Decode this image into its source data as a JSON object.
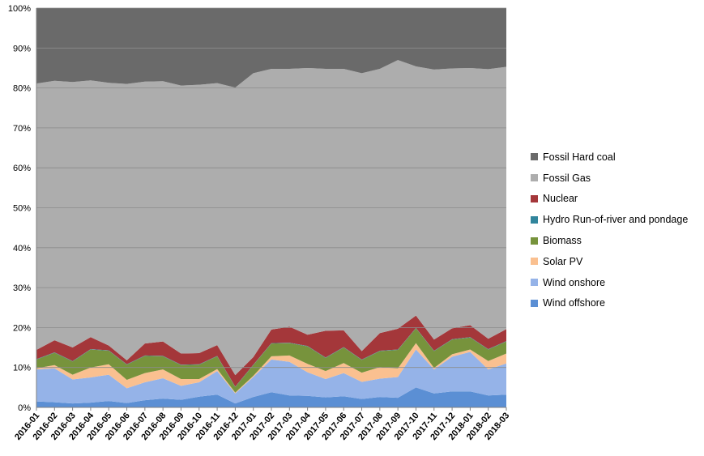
{
  "chart_data": {
    "type": "area",
    "stacked": true,
    "normalized": true,
    "categories": [
      "2016-01",
      "2016-02",
      "2016-03",
      "2016-04",
      "2016-05",
      "2016-06",
      "2016-07",
      "2016-08",
      "2016-09",
      "2016-10",
      "2016-11",
      "2016-12",
      "2017-01",
      "2017-02",
      "2017-03",
      "2017-04",
      "2017-05",
      "2017-06",
      "2017-07",
      "2017-08",
      "2017-09",
      "2017-10",
      "2017-11",
      "2017-12",
      "2018-01",
      "2018-02",
      "2018-03"
    ],
    "yticks": [
      "0%",
      "10%",
      "20%",
      "30%",
      "40%",
      "50%",
      "60%",
      "70%",
      "80%",
      "90%",
      "100%"
    ],
    "ylim": [
      0,
      100
    ],
    "grid": true,
    "legend_position": "right",
    "series": [
      {
        "name": "Wind offshore",
        "color": "#5B8FD4",
        "values": [
          1.5,
          1.3,
          1.0,
          1.2,
          1.6,
          1.1,
          1.8,
          2.2,
          1.9,
          2.7,
          3.2,
          1.0,
          2.6,
          3.8,
          3.0,
          2.9,
          2.5,
          2.8,
          2.1,
          2.6,
          2.4,
          5.0,
          3.5,
          4.0,
          4.0,
          3.0,
          3.2
        ]
      },
      {
        "name": "Wind onshore",
        "color": "#95B3E8",
        "values": [
          8.0,
          8.5,
          6.0,
          6.3,
          6.6,
          3.7,
          4.5,
          5.1,
          3.5,
          3.6,
          5.9,
          2.5,
          5.0,
          8.2,
          8.4,
          5.9,
          4.6,
          5.8,
          4.3,
          4.6,
          5.2,
          9.5,
          6.0,
          8.7,
          9.9,
          6.5,
          7.8
        ]
      },
      {
        "name": "Solar PV",
        "color": "#FAC090",
        "values": [
          0.3,
          0.8,
          1.2,
          2.5,
          2.6,
          2.1,
          2.3,
          2.2,
          1.7,
          0.8,
          0.5,
          0.2,
          0.3,
          0.8,
          1.6,
          2.1,
          2.0,
          2.5,
          2.3,
          2.9,
          2.2,
          1.6,
          0.4,
          0.6,
          0.6,
          2.1,
          2.5
        ]
      },
      {
        "name": "Biomass",
        "color": "#77933C",
        "values": [
          2.2,
          3.1,
          3.3,
          4.5,
          3.4,
          3.8,
          4.3,
          3.3,
          3.5,
          3.6,
          3.2,
          1.4,
          2.7,
          3.2,
          3.1,
          4.4,
          3.3,
          3.9,
          3.2,
          4.0,
          4.6,
          3.7,
          4.2,
          3.7,
          3.0,
          2.9,
          3.0
        ]
      },
      {
        "name": "Hydro Run-of-river and pondage",
        "color": "#31859C",
        "values": [
          0.1,
          0.1,
          0.1,
          0.1,
          0.1,
          0.1,
          0.1,
          0.1,
          0.1,
          0.1,
          0.1,
          0.1,
          0.1,
          0.1,
          0.1,
          0.1,
          0.1,
          0.1,
          0.1,
          0.1,
          0.1,
          0.1,
          0.1,
          0.1,
          0.1,
          0.1,
          0.1
        ]
      },
      {
        "name": "Nuclear",
        "color": "#A4373A",
        "values": [
          2.3,
          3.0,
          3.4,
          3.0,
          1.2,
          1.0,
          3.0,
          3.6,
          2.8,
          2.8,
          2.7,
          2.9,
          1.9,
          3.4,
          4.0,
          2.8,
          6.7,
          4.2,
          2.1,
          4.4,
          5.2,
          3.1,
          2.8,
          2.7,
          3.0,
          2.6,
          3.0
        ]
      },
      {
        "name": "Fossil Gas",
        "color": "#ADADAD",
        "values": [
          66.7,
          65.0,
          66.5,
          64.3,
          65.8,
          69.2,
          65.6,
          65.2,
          67.1,
          67.2,
          65.6,
          72.0,
          71.1,
          65.3,
          64.6,
          66.8,
          65.6,
          65.5,
          69.6,
          66.2,
          67.3,
          62.4,
          67.6,
          65.1,
          64.4,
          67.5,
          65.7
        ]
      },
      {
        "name": "Fossil Hard coal",
        "color": "#6A6A6A",
        "values": [
          18.9,
          18.2,
          18.5,
          18.1,
          18.7,
          19.0,
          18.4,
          18.3,
          19.4,
          19.2,
          18.8,
          19.9,
          16.3,
          15.2,
          15.2,
          15.0,
          15.2,
          15.2,
          16.3,
          15.2,
          13.0,
          14.6,
          15.4,
          15.1,
          15.0,
          15.3,
          14.7
        ]
      }
    ]
  },
  "legend_order": [
    "Fossil Hard coal",
    "Fossil Gas",
    "Nuclear",
    "Hydro Run-of-river and pondage",
    "Biomass",
    "Solar PV",
    "Wind onshore",
    "Wind offshore"
  ]
}
